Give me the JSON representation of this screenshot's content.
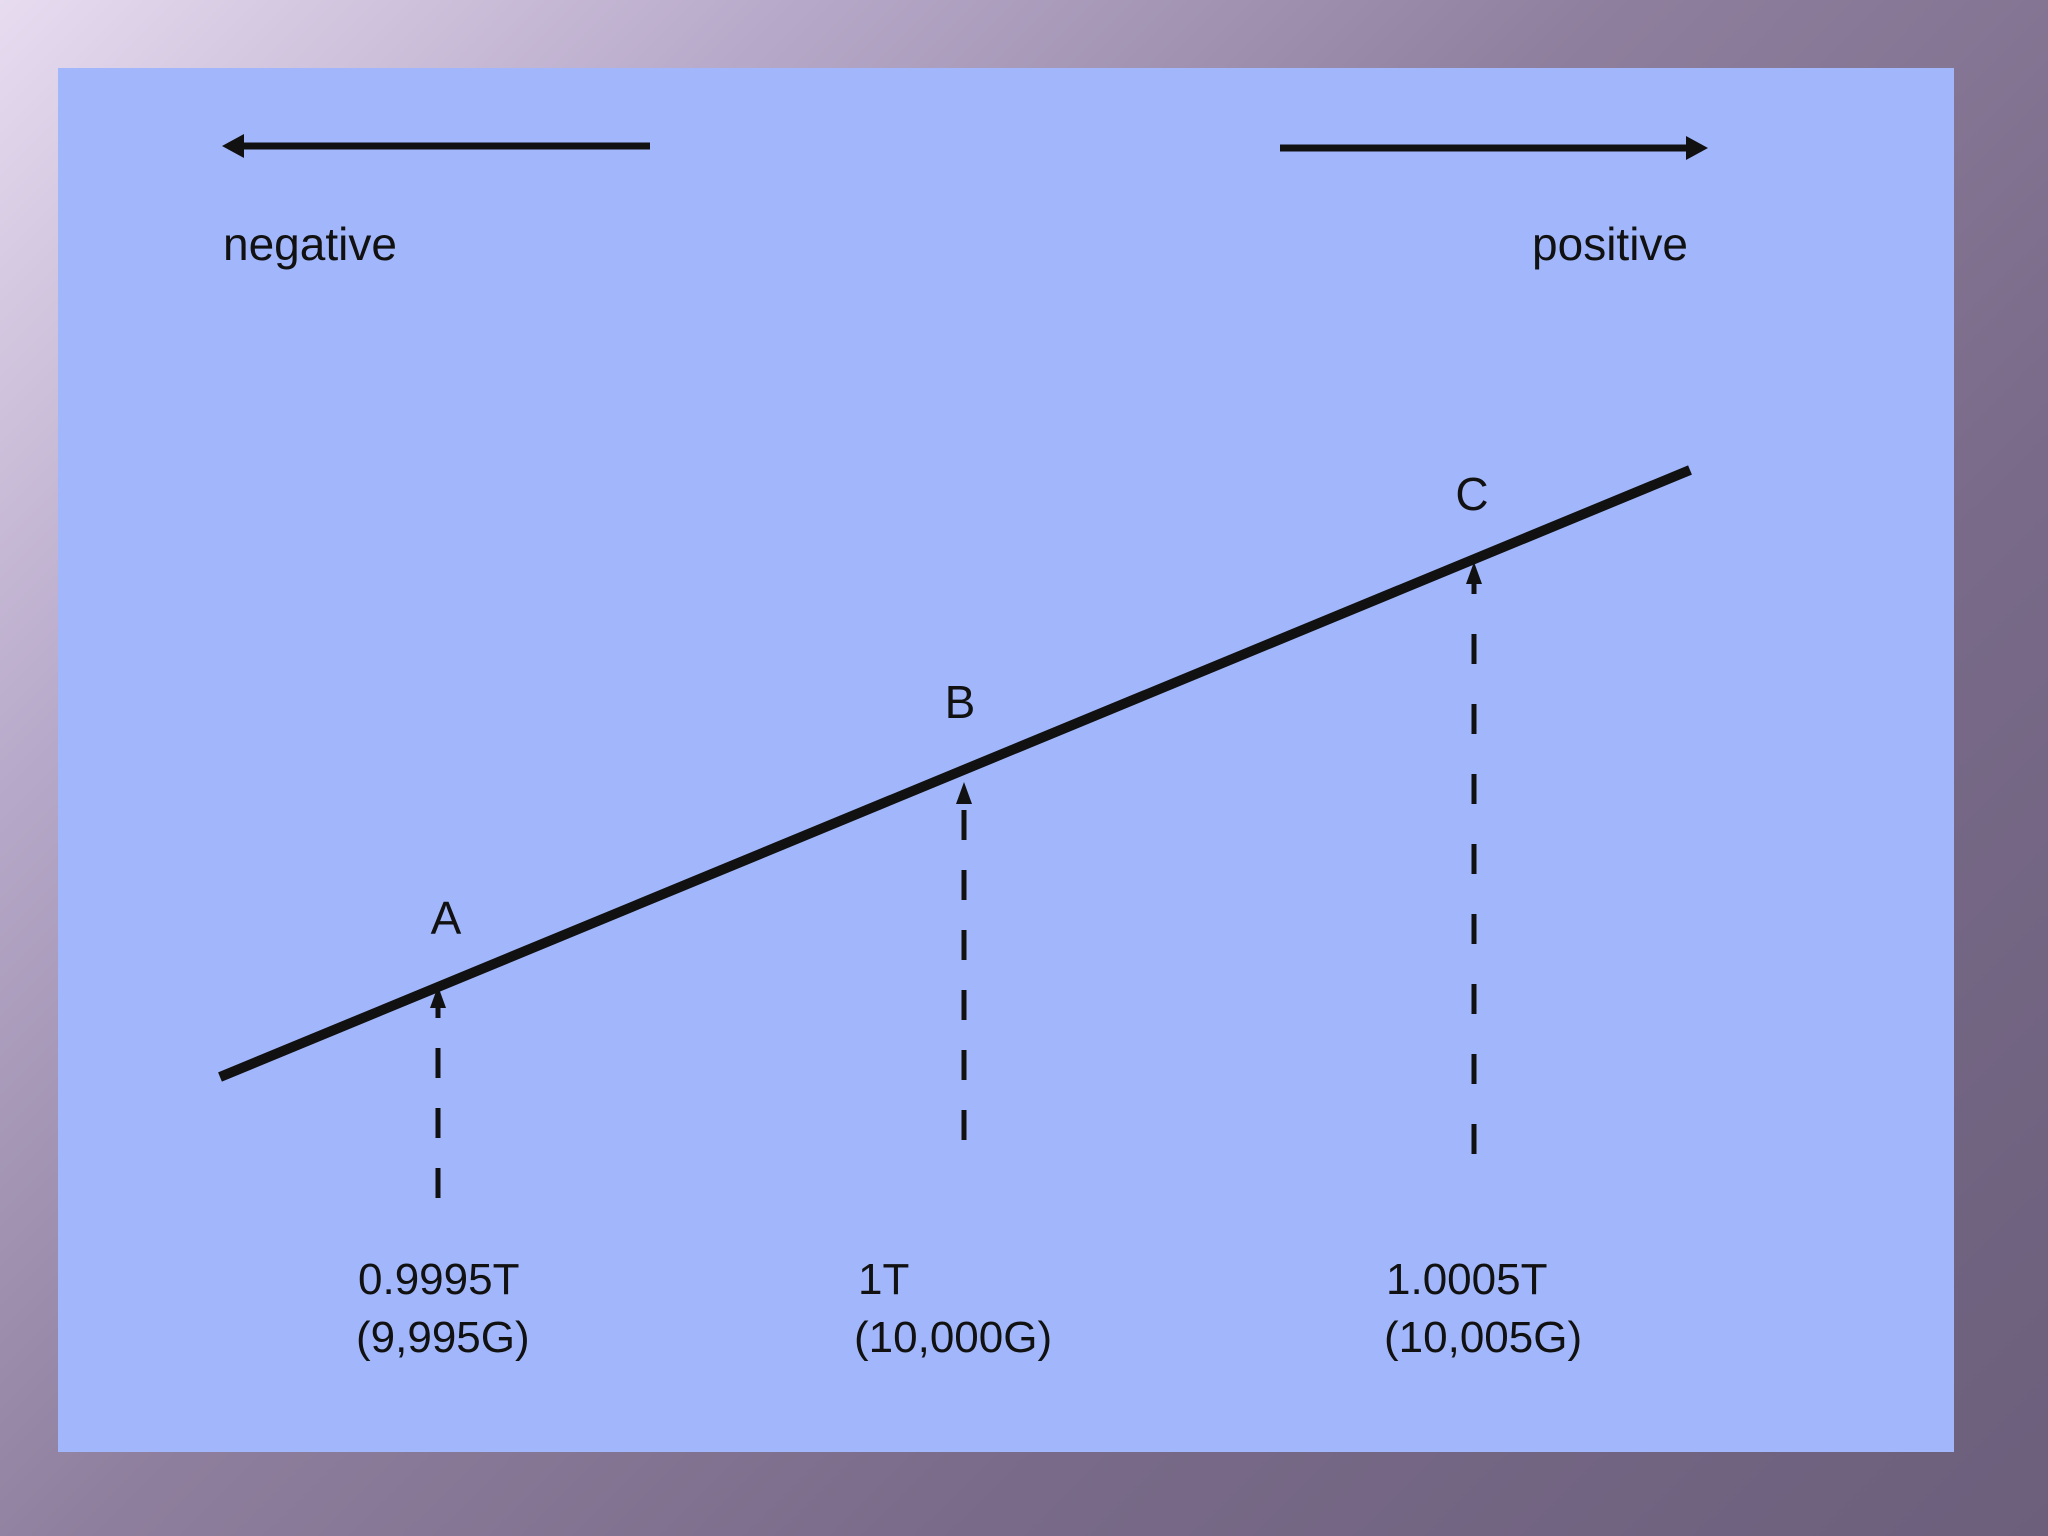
{
  "slide": {
    "direction": {
      "negative_label": "negative",
      "positive_label": "positive"
    },
    "points": [
      {
        "label": "A",
        "tesla_label": "0.9995T",
        "gauss_label": "(9,995G)"
      },
      {
        "label": "B",
        "tesla_label": "1T",
        "gauss_label": "(10,000G)"
      },
      {
        "label": "C",
        "tesla_label": "1.0005T",
        "gauss_label": "(10,005G)"
      }
    ],
    "colors": {
      "panel": "#a2b7fb",
      "ink": "#111111"
    }
  }
}
